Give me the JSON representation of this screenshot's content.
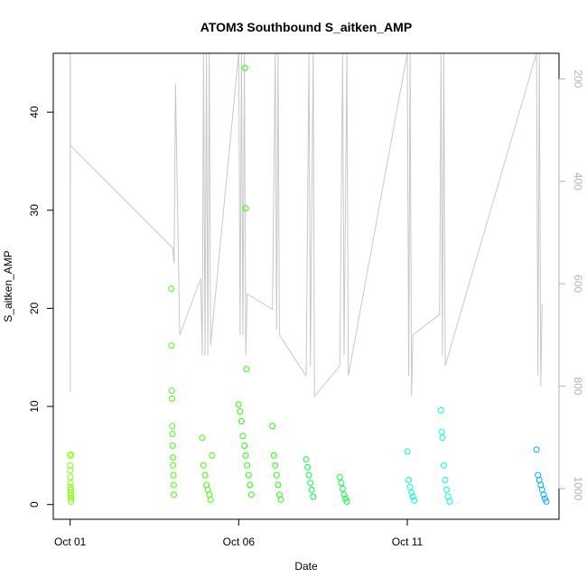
{
  "chart_data": {
    "type": "scatter",
    "title": "ATOM3 Southbound S_aitken_AMP",
    "xlabel": "Date",
    "ylabel": "S_aitken_AMP",
    "xlim": [
      "2017-09-30T12:00",
      "2017-10-15T12:00"
    ],
    "ylim": [
      -1.5,
      46
    ],
    "x_ticks": [
      {
        "date": "2017-10-01",
        "label": "Oct 01"
      },
      {
        "date": "2017-10-06",
        "label": "Oct 06"
      },
      {
        "date": "2017-10-11",
        "label": "Oct 11"
      }
    ],
    "y_ticks": [
      0,
      10,
      20,
      30,
      40
    ],
    "secondary_axis": {
      "description": "altitude profile (inverted)",
      "ylim": [
        1060,
        150
      ],
      "ticks": [
        200,
        400,
        600,
        800,
        1000
      ],
      "color": "#b3b3b3"
    },
    "profile_line": {
      "color": "#c8c8c8",
      "points": [
        [
          "2017-10-01T00:00",
          150
        ],
        [
          "2017-10-01T00:01",
          450
        ],
        [
          "2017-10-01T00:05",
          810
        ],
        [
          "2017-10-01T00:08",
          150
        ],
        [
          "2017-10-01T00:10",
          330
        ],
        [
          "2017-10-04T01:00",
          530
        ],
        [
          "2017-10-04T02:00",
          560
        ],
        [
          "2017-10-04T03:00",
          210
        ],
        [
          "2017-10-04T06:00",
          700
        ],
        [
          "2017-10-04T21:00",
          590
        ],
        [
          "2017-10-04T22:00",
          740
        ],
        [
          "2017-10-04T23:00",
          150
        ],
        [
          "2017-10-05T00:00",
          740
        ],
        [
          "2017-10-05T01:00",
          150
        ],
        [
          "2017-10-05T02:00",
          740
        ],
        [
          "2017-10-05T03:00",
          150
        ],
        [
          "2017-10-05T04:00",
          720
        ],
        [
          "2017-10-06T00:00",
          150
        ],
        [
          "2017-10-06T01:00",
          700
        ],
        [
          "2017-10-06T02:00",
          150
        ],
        [
          "2017-10-06T03:00",
          700
        ],
        [
          "2017-10-06T04:00",
          150
        ],
        [
          "2017-10-06T05:00",
          740
        ],
        [
          "2017-10-06T06:00",
          620
        ],
        [
          "2017-10-07T00:00",
          650
        ],
        [
          "2017-10-07T02:00",
          150
        ],
        [
          "2017-10-07T03:00",
          690
        ],
        [
          "2017-10-07T04:00",
          150
        ],
        [
          "2017-10-07T05:00",
          700
        ],
        [
          "2017-10-08T00:00",
          780
        ],
        [
          "2017-10-08T02:00",
          150
        ],
        [
          "2017-10-08T03:00",
          760
        ],
        [
          "2017-10-08T05:00",
          150
        ],
        [
          "2017-10-08T06:00",
          820
        ],
        [
          "2017-10-09T00:00",
          760
        ],
        [
          "2017-10-09T02:00",
          150
        ],
        [
          "2017-10-09T03:00",
          740
        ],
        [
          "2017-10-09T05:00",
          150
        ],
        [
          "2017-10-09T06:00",
          780
        ],
        [
          "2017-10-11T00:00",
          150
        ],
        [
          "2017-10-11T01:00",
          780
        ],
        [
          "2017-10-11T02:00",
          150
        ],
        [
          "2017-10-11T03:00",
          820
        ],
        [
          "2017-10-11T04:00",
          700
        ],
        [
          "2017-10-11T23:00",
          660
        ],
        [
          "2017-10-12T00:00",
          150
        ],
        [
          "2017-10-12T01:00",
          740
        ],
        [
          "2017-10-12T02:00",
          150
        ],
        [
          "2017-10-12T03:00",
          760
        ],
        [
          "2017-10-14T20:00",
          150
        ],
        [
          "2017-10-14T21:00",
          780
        ],
        [
          "2017-10-14T22:00",
          150
        ],
        [
          "2017-10-14T23:00",
          800
        ],
        [
          "2017-10-15T00:00",
          640
        ]
      ]
    },
    "series": [
      {
        "color": "#80ff00",
        "points": [
          [
            "2017-10-01T00:00",
            5.0
          ],
          [
            "2017-10-01T00:04",
            4.0
          ],
          [
            "2017-10-01T00:08",
            3.5
          ],
          [
            "2017-10-01T00:12",
            2.8
          ],
          [
            "2017-10-01T00:16",
            2.2
          ],
          [
            "2017-10-01T00:20",
            1.8
          ],
          [
            "2017-10-01T00:24",
            1.5
          ],
          [
            "2017-10-01T00:28",
            1.2
          ],
          [
            "2017-10-01T00:32",
            0.9
          ],
          [
            "2017-10-01T00:36",
            0.6
          ],
          [
            "2017-10-01T00:40",
            0.3
          ],
          [
            "2017-10-01T00:44",
            5.1
          ]
        ]
      },
      {
        "color": "#40ff00",
        "points": [
          [
            "2017-10-04T00:00",
            22.0
          ],
          [
            "2017-10-04T00:10",
            16.2
          ],
          [
            "2017-10-04T00:20",
            11.6
          ],
          [
            "2017-10-04T00:30",
            10.8
          ],
          [
            "2017-10-04T00:40",
            8.0
          ],
          [
            "2017-10-04T00:50",
            7.2
          ],
          [
            "2017-10-04T01:00",
            6.0
          ],
          [
            "2017-10-04T01:10",
            4.8
          ],
          [
            "2017-10-04T01:20",
            4.0
          ],
          [
            "2017-10-04T01:30",
            3.0
          ],
          [
            "2017-10-04T01:40",
            2.0
          ],
          [
            "2017-10-04T01:50",
            1.0
          ],
          [
            "2017-10-04T22:00",
            6.8
          ],
          [
            "2017-10-04T23:00",
            4.0
          ],
          [
            "2017-10-05T00:00",
            3.0
          ],
          [
            "2017-10-05T01:00",
            2.0
          ],
          [
            "2017-10-05T02:00",
            1.5
          ],
          [
            "2017-10-05T03:00",
            1.0
          ],
          [
            "2017-10-05T04:00",
            0.5
          ],
          [
            "2017-10-05T05:00",
            5.0
          ]
        ]
      },
      {
        "color": "#20ff00",
        "points": [
          [
            "2017-10-06T00:00",
            10.2
          ],
          [
            "2017-10-06T01:00",
            9.5
          ],
          [
            "2017-10-06T02:00",
            8.5
          ],
          [
            "2017-10-06T03:00",
            7.0
          ],
          [
            "2017-10-06T04:00",
            6.0
          ],
          [
            "2017-10-06T05:00",
            5.0
          ],
          [
            "2017-10-06T06:00",
            4.0
          ],
          [
            "2017-10-06T07:00",
            3.0
          ],
          [
            "2017-10-06T08:00",
            2.0
          ],
          [
            "2017-10-06T09:00",
            1.0
          ],
          [
            "2017-10-06T04:30",
            44.5
          ],
          [
            "2017-10-06T05:00",
            30.2
          ],
          [
            "2017-10-06T05:30",
            13.8
          ],
          [
            "2017-10-07T00:00",
            8.0
          ],
          [
            "2017-10-07T01:00",
            5.0
          ],
          [
            "2017-10-07T02:00",
            4.0
          ],
          [
            "2017-10-07T03:00",
            3.0
          ],
          [
            "2017-10-07T04:00",
            2.0
          ],
          [
            "2017-10-07T05:00",
            1.0
          ],
          [
            "2017-10-07T06:00",
            0.5
          ]
        ]
      },
      {
        "color": "#00ff40",
        "points": [
          [
            "2017-10-08T00:00",
            4.6
          ],
          [
            "2017-10-08T01:00",
            3.8
          ],
          [
            "2017-10-08T02:00",
            3.0
          ],
          [
            "2017-10-08T03:00",
            2.2
          ],
          [
            "2017-10-08T04:00",
            1.5
          ],
          [
            "2017-10-08T05:00",
            0.8
          ],
          [
            "2017-10-09T00:00",
            2.8
          ],
          [
            "2017-10-09T01:00",
            2.2
          ],
          [
            "2017-10-09T02:00",
            1.6
          ],
          [
            "2017-10-09T03:00",
            1.0
          ],
          [
            "2017-10-09T04:00",
            0.6
          ],
          [
            "2017-10-09T05:00",
            0.3
          ]
        ]
      },
      {
        "color": "#00ffd0",
        "points": [
          [
            "2017-10-11T00:00",
            5.4
          ],
          [
            "2017-10-11T01:00",
            2.5
          ],
          [
            "2017-10-11T02:00",
            1.8
          ],
          [
            "2017-10-11T03:00",
            1.2
          ],
          [
            "2017-10-11T04:00",
            0.8
          ],
          [
            "2017-10-11T05:00",
            0.4
          ],
          [
            "2017-10-12T00:00",
            9.6
          ],
          [
            "2017-10-12T00:30",
            7.4
          ],
          [
            "2017-10-12T01:00",
            6.8
          ],
          [
            "2017-10-12T02:00",
            4.0
          ],
          [
            "2017-10-12T03:00",
            2.5
          ],
          [
            "2017-10-12T04:00",
            1.5
          ],
          [
            "2017-10-12T05:00",
            0.8
          ],
          [
            "2017-10-12T06:00",
            0.3
          ]
        ]
      },
      {
        "color": "#00a8ff",
        "points": [
          [
            "2017-10-14T20:00",
            5.6
          ],
          [
            "2017-10-14T21:00",
            3.0
          ],
          [
            "2017-10-14T22:00",
            2.5
          ],
          [
            "2017-10-14T23:00",
            2.0
          ],
          [
            "2017-10-15T00:00",
            1.5
          ],
          [
            "2017-10-15T01:00",
            1.0
          ],
          [
            "2017-10-15T02:00",
            0.6
          ],
          [
            "2017-10-15T03:00",
            0.3
          ]
        ]
      }
    ]
  }
}
